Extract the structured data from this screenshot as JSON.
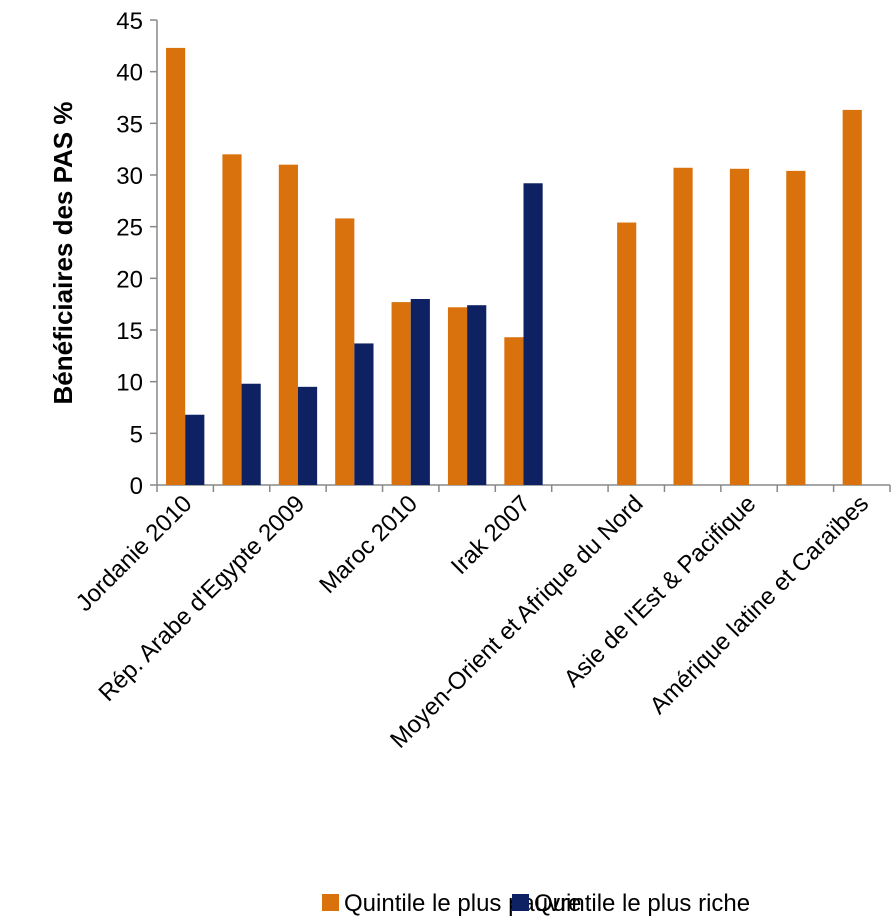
{
  "chart_data": {
    "type": "bar",
    "ylabel": "Bénéficiaires des PAS %",
    "categories": [
      "Jordanie 2010",
      null,
      "Rép. Arabe d'Egypte 2009",
      null,
      "Maroc 2010",
      null,
      "Irak 2007",
      null,
      "Moyen-Orient et Afrique du Nord",
      null,
      "Asie de l'Est & Pacifique",
      null,
      "Amérique latine et Caraïbes"
    ],
    "series": [
      {
        "name": "Quintile le plus pauvre",
        "color": "#d9720c",
        "values": [
          42.3,
          32,
          31,
          25.8,
          17.7,
          17.2,
          14.3,
          null,
          25.4,
          30.7,
          30.6,
          30.4,
          36.3
        ]
      },
      {
        "name": "Quintile le plus riche",
        "color": "#0e2263",
        "values": [
          6.8,
          9.8,
          9.5,
          13.7,
          18,
          17.4,
          29.2,
          null,
          null,
          null,
          null,
          null,
          null
        ]
      }
    ],
    "ylim": [
      0,
      45
    ],
    "yticks": [
      0,
      5,
      10,
      15,
      20,
      25,
      30,
      35,
      40,
      45
    ],
    "legend": "bottom"
  }
}
